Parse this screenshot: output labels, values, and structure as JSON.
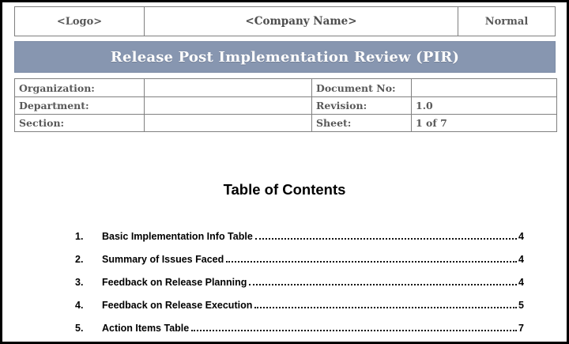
{
  "header": {
    "logo": "<Logo>",
    "company": "<Company Name>",
    "classification": "Normal"
  },
  "banner": {
    "title": "Release Post Implementation Review (PIR)"
  },
  "info_table": {
    "rows": [
      {
        "label1": "Organization:",
        "value1": "",
        "label2": "Document No:",
        "value2": ""
      },
      {
        "label1": "Department:",
        "value1": "",
        "label2": "Revision:",
        "value2": "1.0"
      },
      {
        "label1": "Section:",
        "value1": "",
        "label2": "Sheet:",
        "value2": "1 of 7"
      }
    ]
  },
  "toc": {
    "heading": "Table of Contents",
    "entries": [
      {
        "num": "1.",
        "title": "Basic Implementation Info Table",
        "page": "4"
      },
      {
        "num": "2.",
        "title": "Summary of Issues Faced",
        "page": "4"
      },
      {
        "num": "3.",
        "title": "Feedback on Release Planning",
        "page": "4"
      },
      {
        "num": "4.",
        "title": "Feedback on Release Execution",
        "page": "5"
      },
      {
        "num": "5.",
        "title": "Action Items Table",
        "page": "7"
      }
    ]
  },
  "colors": {
    "banner_bg": "#8796B0",
    "table_border": "#808080",
    "label_text": "#595959",
    "page_border": "#000000"
  }
}
